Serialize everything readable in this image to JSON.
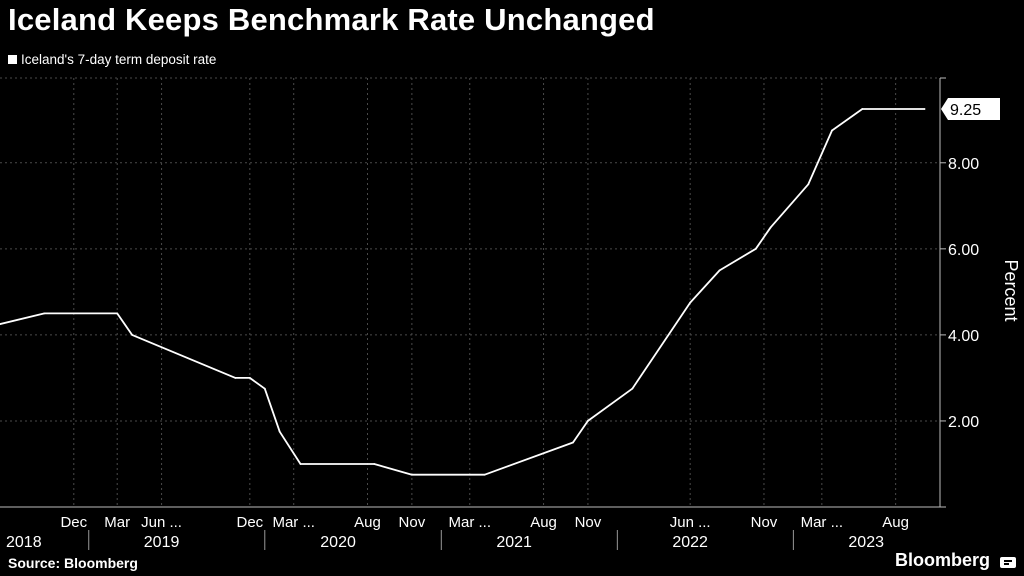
{
  "header": {
    "title": "Iceland Keeps Benchmark Rate Unchanged"
  },
  "footer": {
    "source": "Source: Bloomberg",
    "brand": "Bloomberg"
  },
  "chart_data": {
    "type": "line",
    "title": "Iceland Keeps Benchmark Rate Unchanged",
    "xlabel": "",
    "ylabel": "Percent",
    "grid": true,
    "legend_position": "top-left",
    "y_axis_position": "right",
    "ylim": [
      0,
      9.25
    ],
    "xlim": [
      "2018-07-01",
      "2023-11-01"
    ],
    "yticks": [
      2.0,
      4.0,
      6.0,
      8.0
    ],
    "ytick_labels": [
      "2.00",
      "4.00",
      "6.00",
      "8.00"
    ],
    "month_ticks": [
      {
        "label": "Dec",
        "date": "2018-12-01"
      },
      {
        "label": "Mar",
        "date": "2019-03-01"
      },
      {
        "label": "Jun ...",
        "date": "2019-06-01"
      },
      {
        "label": "Dec",
        "date": "2019-12-01"
      },
      {
        "label": "Mar ...",
        "date": "2020-03-01"
      },
      {
        "label": "Aug",
        "date": "2020-08-01"
      },
      {
        "label": "Nov",
        "date": "2020-11-01"
      },
      {
        "label": "Mar ...",
        "date": "2021-03-01"
      },
      {
        "label": "Aug",
        "date": "2021-08-01"
      },
      {
        "label": "Nov",
        "date": "2021-11-01"
      },
      {
        "label": "Jun ...",
        "date": "2022-06-01"
      },
      {
        "label": "Nov",
        "date": "2022-11-01"
      },
      {
        "label": "Mar ...",
        "date": "2023-03-01"
      },
      {
        "label": "Aug",
        "date": "2023-08-01"
      }
    ],
    "year_labels": [
      {
        "label": "2018",
        "date": "2018-09-01"
      },
      {
        "label": "2019",
        "date": "2019-06-01"
      },
      {
        "label": "2020",
        "date": "2020-06-01"
      },
      {
        "label": "2021",
        "date": "2021-06-01"
      },
      {
        "label": "2022",
        "date": "2022-06-01"
      },
      {
        "label": "2023",
        "date": "2023-06-01"
      }
    ],
    "year_boundaries": [
      "2019-01-01",
      "2020-01-01",
      "2021-01-01",
      "2022-01-01",
      "2023-01-01"
    ],
    "last_value_label": "9.25",
    "series": [
      {
        "name": "Iceland's 7-day term deposit rate",
        "color": "#ffffff",
        "points": [
          {
            "x": "2018-07-01",
            "y": 4.25
          },
          {
            "x": "2018-10-01",
            "y": 4.5
          },
          {
            "x": "2019-03-01",
            "y": 4.5
          },
          {
            "x": "2019-04-01",
            "y": 4.0
          },
          {
            "x": "2019-11-01",
            "y": 3.0
          },
          {
            "x": "2019-12-01",
            "y": 3.0
          },
          {
            "x": "2020-01-01",
            "y": 2.75
          },
          {
            "x": "2020-02-01",
            "y": 1.75
          },
          {
            "x": "2020-03-15",
            "y": 1.0
          },
          {
            "x": "2020-08-15",
            "y": 1.0
          },
          {
            "x": "2020-11-01",
            "y": 0.75
          },
          {
            "x": "2021-04-01",
            "y": 0.75
          },
          {
            "x": "2021-10-01",
            "y": 1.5
          },
          {
            "x": "2021-11-01",
            "y": 2.0
          },
          {
            "x": "2022-02-01",
            "y": 2.75
          },
          {
            "x": "2022-06-01",
            "y": 4.75
          },
          {
            "x": "2022-08-01",
            "y": 5.5
          },
          {
            "x": "2022-10-15",
            "y": 6.0
          },
          {
            "x": "2022-11-15",
            "y": 6.5
          },
          {
            "x": "2023-02-01",
            "y": 7.5
          },
          {
            "x": "2023-03-22",
            "y": 8.75
          },
          {
            "x": "2023-05-24",
            "y": 9.25
          },
          {
            "x": "2023-09-30",
            "y": 9.25
          }
        ]
      }
    ]
  }
}
